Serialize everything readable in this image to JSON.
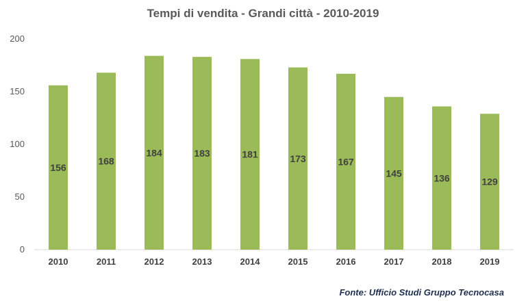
{
  "chart_data": {
    "type": "bar",
    "title": "Tempi di vendita - Grandi città - 2010-2019",
    "xlabel": "",
    "ylabel": "",
    "categories": [
      "2010",
      "2011",
      "2012",
      "2013",
      "2014",
      "2015",
      "2016",
      "2017",
      "2018",
      "2019"
    ],
    "values": [
      156,
      168,
      184,
      183,
      181,
      173,
      167,
      145,
      136,
      129
    ],
    "data_labels": [
      "156",
      "168",
      "184",
      "183",
      "181",
      "173",
      "167",
      "145",
      "136",
      "129"
    ],
    "ylim": [
      0,
      200
    ],
    "yticks": [
      0,
      50,
      100,
      150,
      200
    ],
    "ytick_labels": [
      "0",
      "50",
      "100",
      "150",
      "200"
    ],
    "grid": false,
    "legend": "none",
    "bar_color": "#9bbb59"
  },
  "source": "Fonte: Ufficio Studi Gruppo Tecnocasa"
}
